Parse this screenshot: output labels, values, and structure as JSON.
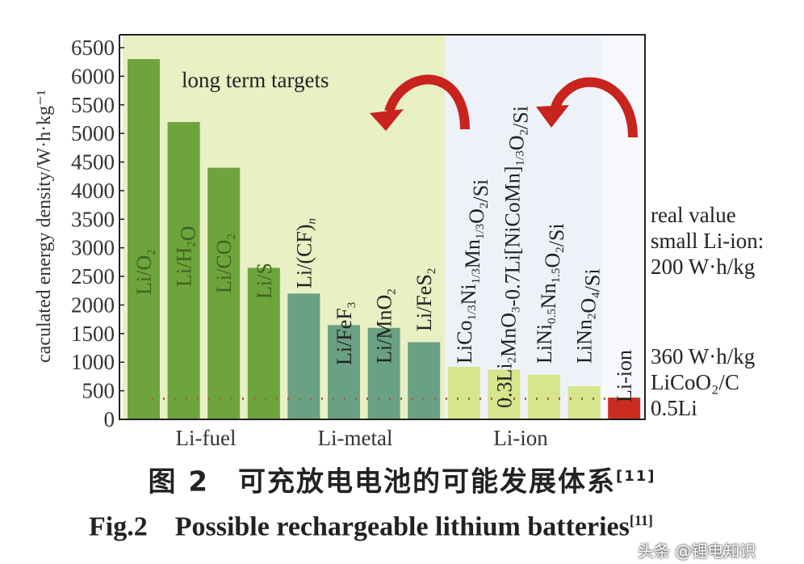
{
  "chart_data": {
    "type": "bar",
    "ylabel": "caculated energy density/W·h·kg⁻¹",
    "ylim": [
      0,
      6500
    ],
    "yticks": [
      0,
      500,
      1000,
      1500,
      2000,
      2500,
      3000,
      3500,
      4000,
      4500,
      5000,
      5500,
      6000,
      6500
    ],
    "grid": false,
    "categories": [
      {
        "parts": [
          [
            "Li/O",
            ""
          ],
          [
            "2",
            "sub"
          ]
        ],
        "value": 6300,
        "group": "Li-fuel"
      },
      {
        "parts": [
          [
            "Li/H",
            ""
          ],
          [
            "2",
            "sub"
          ],
          [
            "O",
            ""
          ]
        ],
        "value": 5200,
        "group": "Li-fuel"
      },
      {
        "parts": [
          [
            "Li/CO",
            ""
          ],
          [
            "2",
            "sub"
          ]
        ],
        "value": 4400,
        "group": "Li-fuel"
      },
      {
        "parts": [
          [
            "Li/S",
            ""
          ]
        ],
        "value": 2650,
        "group": "Li-fuel"
      },
      {
        "parts": [
          [
            "Li/(CF)",
            ""
          ],
          [
            "n",
            "subi"
          ]
        ],
        "value": 2200,
        "group": "Li-metal"
      },
      {
        "parts": [
          [
            "Li/FeF",
            ""
          ],
          [
            "3",
            "sub"
          ]
        ],
        "value": 1650,
        "group": "Li-metal"
      },
      {
        "parts": [
          [
            "Li/MnO",
            ""
          ],
          [
            "2",
            "sub"
          ]
        ],
        "value": 1600,
        "group": "Li-metal"
      },
      {
        "parts": [
          [
            "Li/FeS",
            ""
          ],
          [
            "2",
            "sub"
          ]
        ],
        "value": 1350,
        "group": "Li-metal"
      },
      {
        "parts": [
          [
            "LiCo",
            ""
          ],
          [
            "1/3",
            "sub"
          ],
          [
            "Ni",
            ""
          ],
          [
            "1/3",
            "sub"
          ],
          [
            "Mn",
            ""
          ],
          [
            "1/3",
            "sub"
          ],
          [
            "O",
            ""
          ],
          [
            "2",
            "sub"
          ],
          [
            "/Si",
            ""
          ]
        ],
        "value": 920,
        "group": "Li-ion"
      },
      {
        "parts": [
          [
            "0.3Li",
            ""
          ],
          [
            "2",
            "sub"
          ],
          [
            "MnO",
            ""
          ],
          [
            "3",
            "sub"
          ],
          [
            "-0.7Li[NiCoMn]",
            ""
          ],
          [
            "1/3",
            "sub"
          ],
          [
            "O",
            ""
          ],
          [
            "2",
            "sub"
          ],
          [
            "/Si",
            ""
          ]
        ],
        "value": 870,
        "group": "Li-ion"
      },
      {
        "parts": [
          [
            "LiNi",
            ""
          ],
          [
            "0.5",
            "sub"
          ],
          [
            "Nn",
            ""
          ],
          [
            "1.5",
            "sub"
          ],
          [
            "O",
            ""
          ],
          [
            "2",
            "sub"
          ],
          [
            "/Si",
            ""
          ]
        ],
        "value": 780,
        "group": "Li-ion"
      },
      {
        "parts": [
          [
            "LiNn",
            ""
          ],
          [
            "2",
            "sub"
          ],
          [
            "O",
            ""
          ],
          [
            "4",
            "sub"
          ],
          [
            "/Si",
            ""
          ]
        ],
        "value": 580,
        "group": "Li-ion"
      },
      {
        "parts": [
          [
            "Li-ion",
            ""
          ]
        ],
        "value": 380,
        "group": "Li-ion-current"
      }
    ],
    "reference_line": {
      "value": 360,
      "style": "dotted"
    },
    "groups": [
      "Li-fuel",
      "Li-metal",
      "Li-ion"
    ],
    "annotations": {
      "long_term": "long term targets",
      "real_value": [
        "real value",
        "small Li-ion:",
        "200 W·h/kg"
      ],
      "current": [
        "360 W·h/kg",
        "LiCoO₂/C",
        "0.5Li"
      ]
    },
    "colors": {
      "li_fuel": "#6ea43c",
      "li_metal": "#6aa184",
      "li_ion": "#d7e58c",
      "li_ion_current": "#cc2b20",
      "bg_targets": "#e8f0c4",
      "bg_ion": "#eef2f8",
      "arrow": "#c8231d"
    }
  },
  "caption": {
    "cn": "图 2　可充放电电池的可能发展体系",
    "cn_ref": "[11]",
    "en_fig": "Fig.2",
    "en_title": "Possible rechargeable lithium batteries",
    "en_ref": "[11]"
  },
  "watermark": "头条 @锂电知识"
}
